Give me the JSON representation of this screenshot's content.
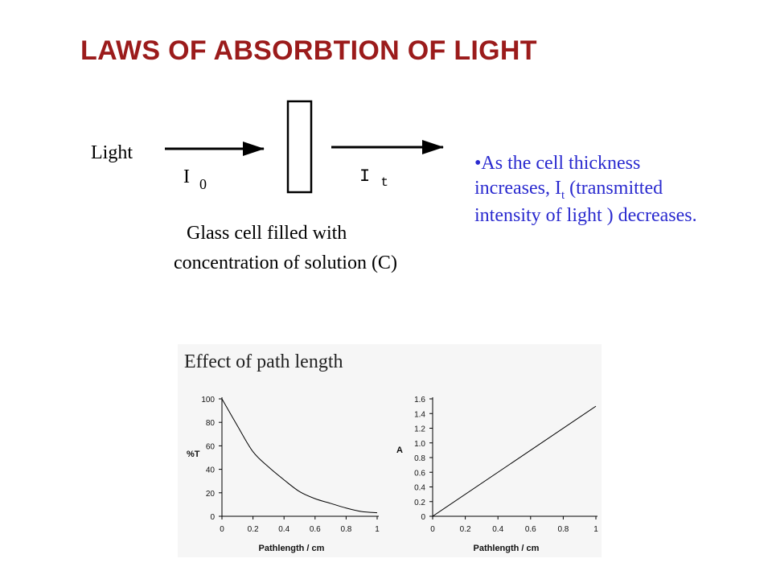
{
  "slide": {
    "title": "LAWS OF ABSORBTION OF LIGHT",
    "bullet": {
      "marker": "•",
      "line1": "As the cell thickness",
      "line2_prefix": "increases, I",
      "line2_sub": "t",
      "line2_suffix": " (transmitted",
      "line3": "intensity of light ) decreases."
    }
  },
  "diagram": {
    "light_label": "Light",
    "i0_main": "I",
    "i0_sub": "0",
    "it_main": "I",
    "it_sub": "t",
    "caption_line1": "Glass cell filled with",
    "caption_line2": "concentration of solution (C)"
  },
  "figure": {
    "heading": "Effect of path length"
  },
  "chart_data": [
    {
      "type": "line",
      "title": "",
      "xlabel": "Pathlength / cm",
      "ylabel": "%T",
      "xlim": [
        0,
        1
      ],
      "ylim": [
        0,
        100
      ],
      "xticks": [
        "0",
        "0.2",
        "0.4",
        "0.6",
        "0.8",
        "1"
      ],
      "xtick_values": [
        0,
        0.2,
        0.4,
        0.6,
        0.8,
        1
      ],
      "yticks": [
        "0",
        "20",
        "40",
        "60",
        "80",
        "100"
      ],
      "ytick_values": [
        0,
        20,
        40,
        60,
        80,
        100
      ],
      "grid": false,
      "series": [
        {
          "x": [
            0,
            0.1,
            0.2,
            0.3,
            0.4,
            0.5,
            0.6,
            0.7,
            0.8,
            0.9,
            1.0
          ],
          "y": [
            100,
            77,
            55,
            42,
            31,
            21,
            15,
            11,
            7,
            4,
            3
          ]
        }
      ]
    },
    {
      "type": "line",
      "title": "",
      "xlabel": "Pathlength / cm",
      "ylabel": "A",
      "xlim": [
        0,
        1
      ],
      "ylim": [
        0,
        1.6
      ],
      "xticks": [
        "0",
        "0.2",
        "0.4",
        "0.6",
        "0.8",
        "1"
      ],
      "xtick_values": [
        0,
        0.2,
        0.4,
        0.6,
        0.8,
        1
      ],
      "yticks": [
        "0",
        "0.2",
        "0.4",
        "0.6",
        "0.8",
        "1.0",
        "1.2",
        "1.4",
        "1.6"
      ],
      "ytick_values": [
        0,
        0.2,
        0.4,
        0.6,
        0.8,
        1.0,
        1.2,
        1.4,
        1.6
      ],
      "grid": false,
      "series": [
        {
          "x": [
            0,
            1.0
          ],
          "y": [
            0,
            1.5
          ]
        }
      ]
    }
  ],
  "colors": {
    "title": "#9b1b1b",
    "bullet_text": "#2a2acf",
    "line": "#000000",
    "plot_bg": "#f6f6f6"
  }
}
